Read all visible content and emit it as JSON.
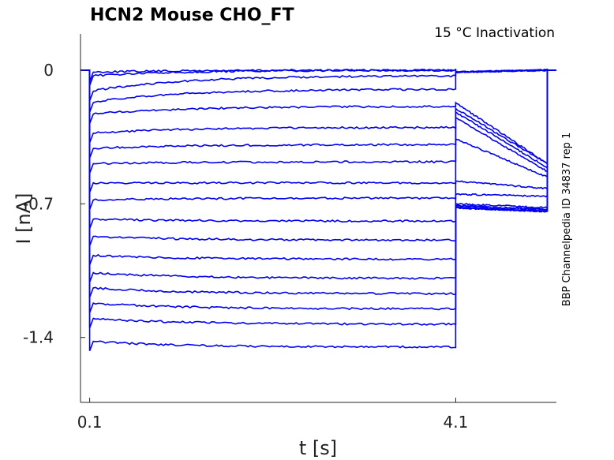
{
  "chart_data": {
    "type": "line",
    "title": "HCN2  Mouse  CHO_FT",
    "subtitle": "15 °C  Inactivation",
    "side_label": "BBP Channelpedia ID 34837 rep 1",
    "xlabel": "t [s]",
    "ylabel": "I [nA]",
    "x_ticks": [
      "0.1",
      "4.1"
    ],
    "y_ticks": [
      "0",
      "-0.7",
      "-1.4"
    ],
    "xlim": [
      0.0,
      5.2
    ],
    "ylim": [
      -1.74,
      0.19
    ],
    "grid": false,
    "color": "#0000ee",
    "segments": {
      "pre_end": 0.1,
      "step_end": 4.1,
      "tail_end": 5.1
    },
    "series": [
      {
        "plateau_start": -0.01,
        "plateau_end": 0.0,
        "tail_start": -0.01,
        "tail_end": 0.0
      },
      {
        "plateau_start": -0.03,
        "plateau_end": 0.0,
        "tail_start": -0.01,
        "tail_end": 0.0
      },
      {
        "plateau_start": -0.11,
        "plateau_end": -0.03,
        "tail_start": -0.01,
        "tail_end": 0.0
      },
      {
        "plateau_start": -0.17,
        "plateau_end": -0.1,
        "tail_start": -0.01,
        "tail_end": 0.0
      },
      {
        "plateau_start": -0.23,
        "plateau_end": -0.19,
        "tail_start": -0.17,
        "tail_end": -0.49
      },
      {
        "plateau_start": -0.33,
        "plateau_end": -0.3,
        "tail_start": -0.2,
        "tail_end": -0.49
      },
      {
        "plateau_start": -0.41,
        "plateau_end": -0.39,
        "tail_start": -0.22,
        "tail_end": -0.51
      },
      {
        "plateau_start": -0.49,
        "plateau_end": -0.48,
        "tail_start": -0.25,
        "tail_end": -0.53
      },
      {
        "plateau_start": -0.59,
        "plateau_end": -0.59,
        "tail_start": -0.36,
        "tail_end": -0.56
      },
      {
        "plateau_start": -0.68,
        "plateau_end": -0.67,
        "tail_start": -0.58,
        "tail_end": -0.62
      },
      {
        "plateau_start": -0.78,
        "plateau_end": -0.79,
        "tail_start": -0.65,
        "tail_end": -0.66
      },
      {
        "plateau_start": -0.87,
        "plateau_end": -0.89,
        "tail_start": -0.7,
        "tail_end": -0.72
      },
      {
        "plateau_start": -0.97,
        "plateau_end": -0.99,
        "tail_start": -0.71,
        "tail_end": -0.73
      },
      {
        "plateau_start": -1.06,
        "plateau_end": -1.09,
        "tail_start": -0.71,
        "tail_end": -0.73
      },
      {
        "plateau_start": -1.14,
        "plateau_end": -1.17,
        "tail_start": -0.72,
        "tail_end": -0.74
      },
      {
        "plateau_start": -1.22,
        "plateau_end": -1.25,
        "tail_start": -0.72,
        "tail_end": -0.74
      },
      {
        "plateau_start": -1.3,
        "plateau_end": -1.33,
        "tail_start": -0.72,
        "tail_end": -0.74
      },
      {
        "plateau_start": -1.42,
        "plateau_end": -1.45,
        "tail_start": -0.72,
        "tail_end": -0.74
      }
    ]
  }
}
